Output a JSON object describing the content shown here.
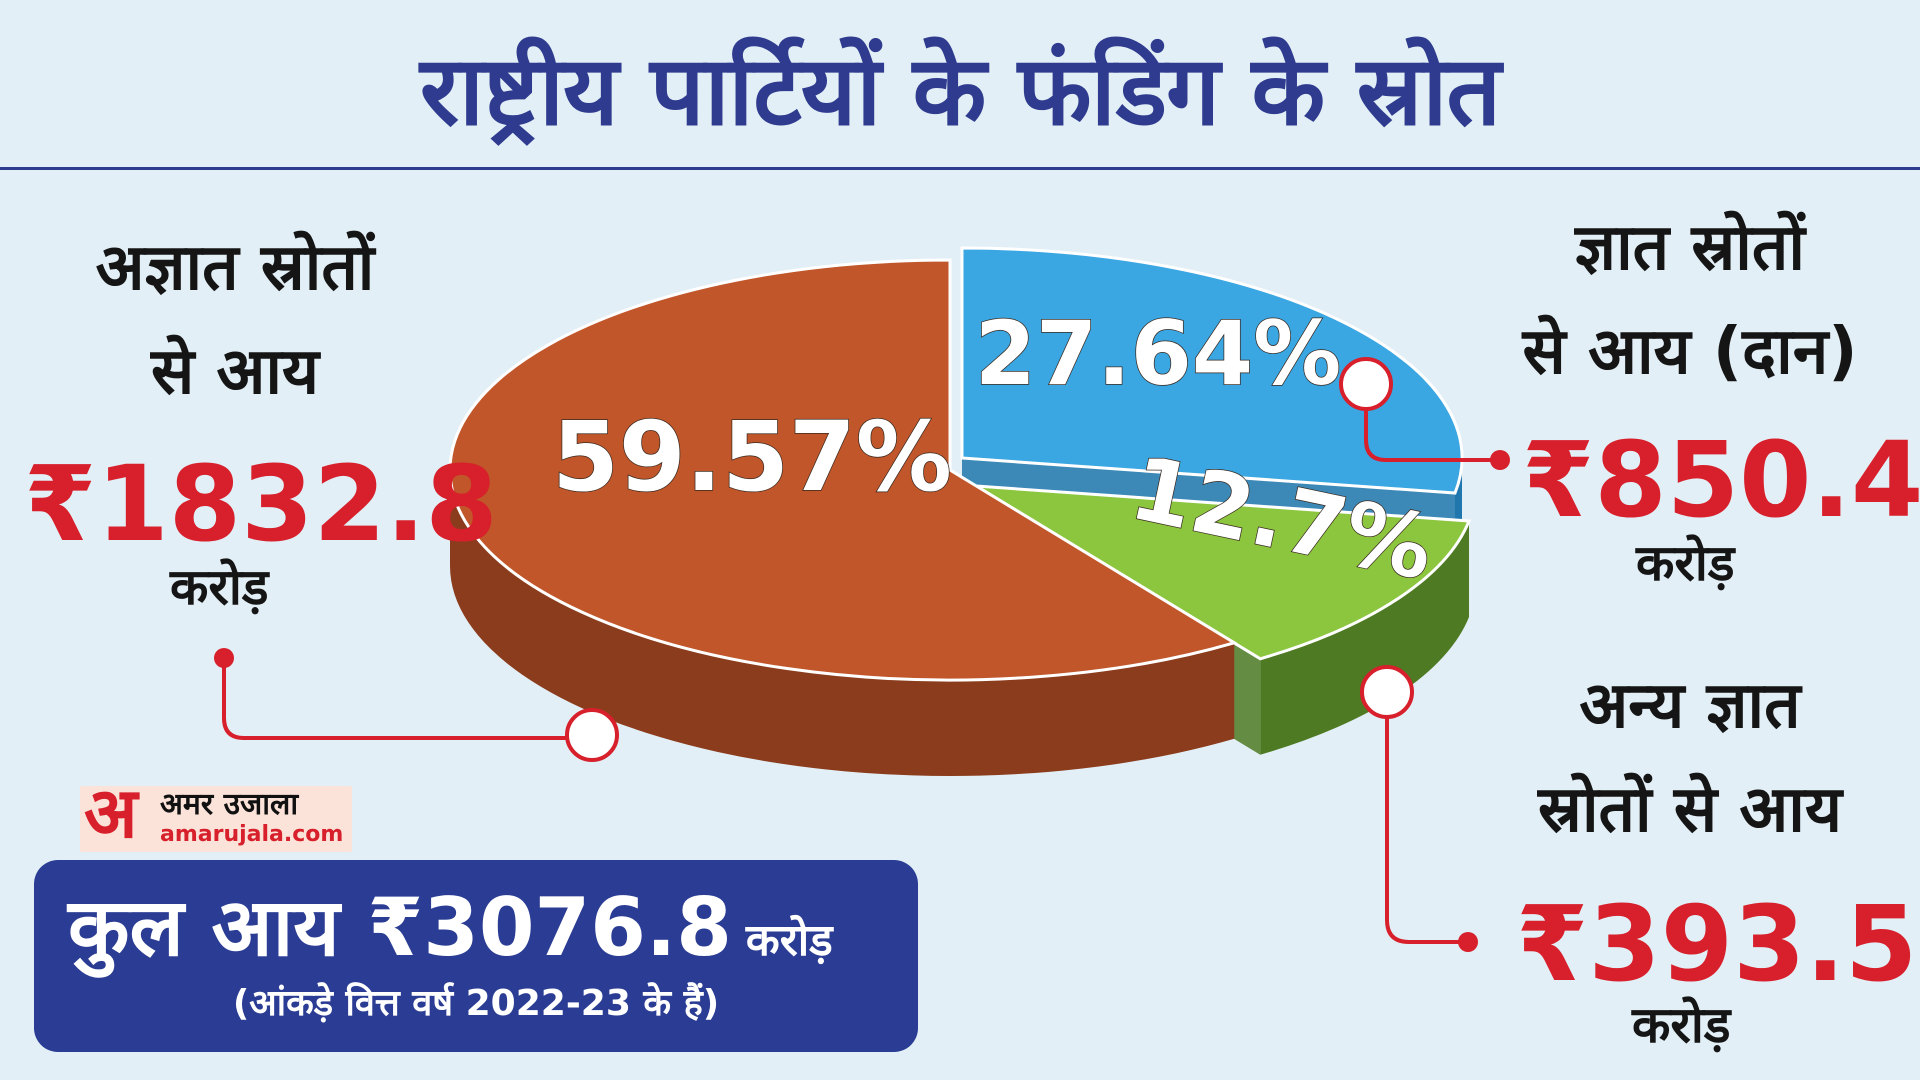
{
  "title": "राष्ट्रीय पार्टियों के फंडिंग के स्रोत",
  "unit_label": "करोड़",
  "logo": {
    "glyph": "अ",
    "name": "अमर उजाला",
    "url": "amarujala.com"
  },
  "total": {
    "label": "कुल आय ₹3076.8",
    "unit": "करोड़",
    "note": "(आंकड़े वित्त वर्ष 2022-23 के हैं)"
  },
  "chart_data": {
    "type": "pie",
    "title": "राष्ट्रीय पार्टियों के फंडिंग के स्रोत",
    "unit": "करोड़",
    "total": 3076.8,
    "slices": [
      {
        "label_line1": "अज्ञात स्रोतों",
        "label_line2": "से आय",
        "amount_text": "₹1832.8",
        "amount": 1832.8,
        "percent": 59.57,
        "percent_text": "59.57%",
        "color": "#c0562a",
        "side_color": "#8b3c1c"
      },
      {
        "label_line1": "ज्ञात स्रोतों",
        "label_line2": "से आय (दान)",
        "amount_text": "₹850.4",
        "amount": 850.4,
        "percent": 27.64,
        "percent_text": "27.64%",
        "color": "#3aa6e2",
        "side_color": "#1f77ad"
      },
      {
        "label_line1": "अन्य ज्ञात",
        "label_line2": "स्रोतों से आय",
        "amount_text": "₹393.5",
        "amount": 393.5,
        "percent": 12.7,
        "percent_text": "12.7%",
        "color": "#8cc63f",
        "side_color": "#4e7a23"
      }
    ]
  }
}
